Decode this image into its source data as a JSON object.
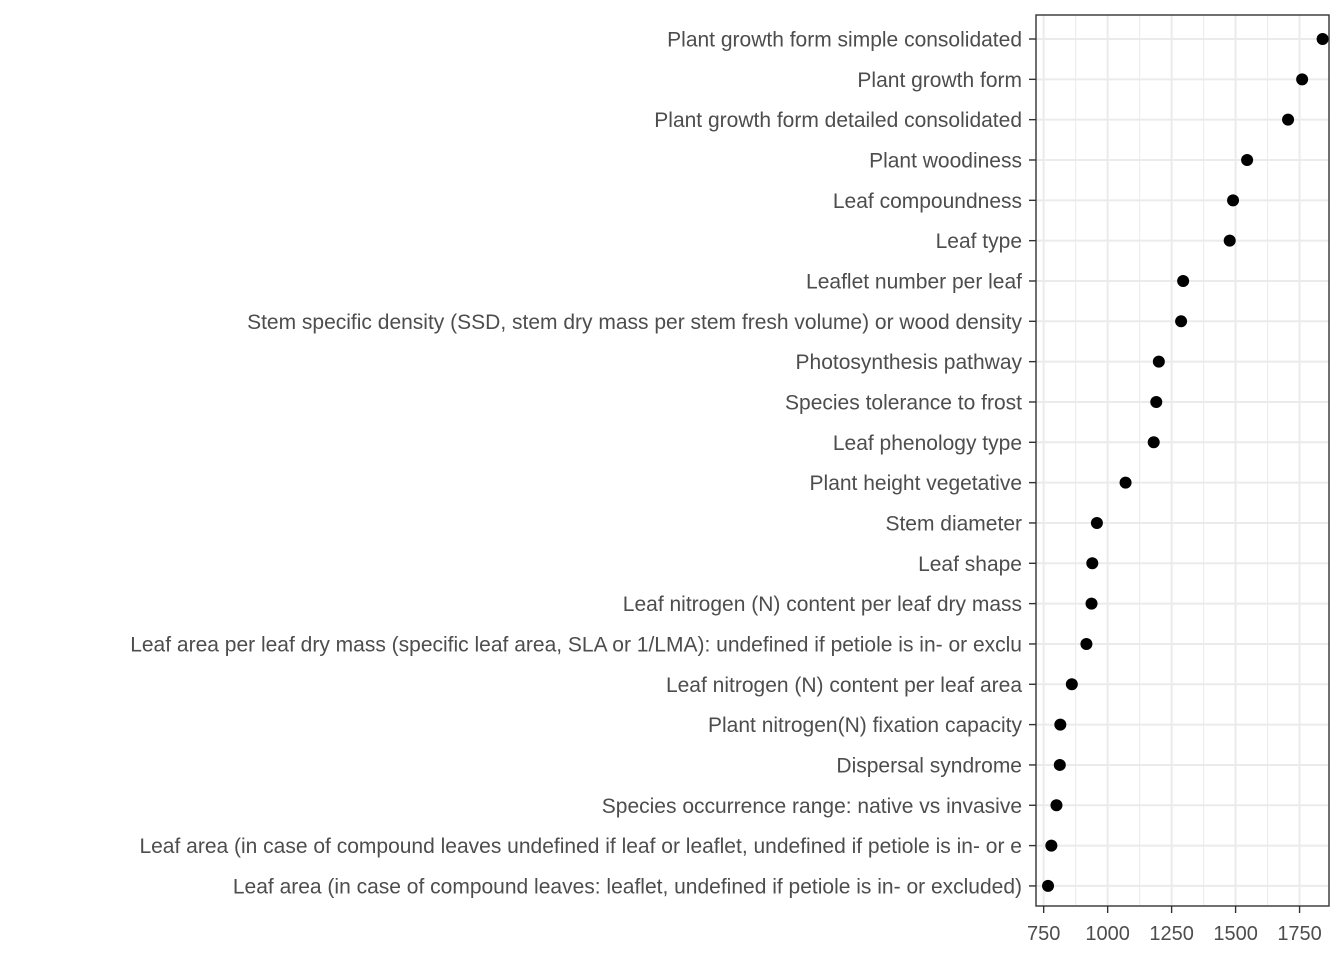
{
  "chart_data": {
    "type": "scatter",
    "orientation": "horizontal",
    "categories": [
      "Plant growth form simple consolidated",
      "Plant growth form",
      "Plant growth form detailed consolidated",
      "Plant woodiness",
      "Leaf compoundness",
      "Leaf type",
      "Leaflet number per leaf",
      "Stem specific density (SSD, stem dry mass per stem fresh volume) or wood density",
      "Photosynthesis pathway",
      "Species tolerance to frost",
      "Leaf phenology type",
      "Plant height vegetative",
      "Stem diameter",
      "Leaf shape",
      "Leaf nitrogen (N) content per leaf dry mass",
      "Leaf area per leaf dry mass (specific leaf area, SLA or 1/LMA): undefined if petiole is in- or exclu",
      "Leaf nitrogen (N) content per leaf area",
      "Plant nitrogen(N) fixation capacity",
      "Dispersal syndrome",
      "Species occurrence range: native vs invasive",
      "Leaf area (in case of compound leaves undefined if leaf or leaflet, undefined if petiole is in- or e",
      "Leaf area (in case of compound leaves: leaflet, undefined if petiole is in- or excluded)"
    ],
    "values": [
      1840,
      1760,
      1705,
      1545,
      1490,
      1477,
      1295,
      1287,
      1200,
      1190,
      1180,
      1070,
      958,
      940,
      937,
      917,
      860,
      815,
      813,
      800,
      780,
      767
    ],
    "x_ticks": [
      750,
      1000,
      1250,
      1500,
      1750
    ],
    "xlim": [
      720,
      1865
    ],
    "title": "",
    "xlabel": "",
    "ylabel": "",
    "grid": true,
    "legend": "none",
    "point_color": "#000000",
    "grid_color": "#ebebeb",
    "label_color": "#4d4d4d"
  }
}
